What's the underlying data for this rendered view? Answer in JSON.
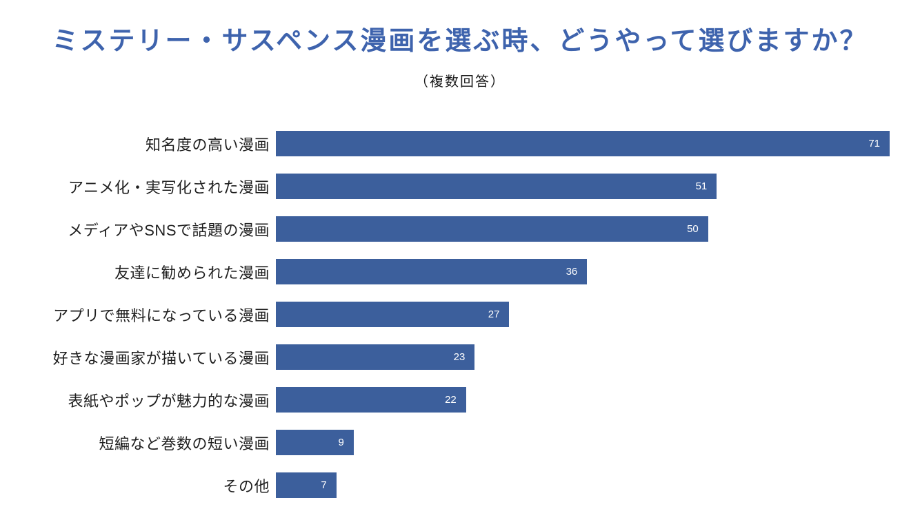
{
  "page": {
    "background": "#ffffff"
  },
  "chart_data": {
    "type": "bar",
    "orientation": "horizontal",
    "title": "ミステリー・サスペンス漫画を選ぶ時、どうやって選びますか？",
    "subtitle": "（複数回答）",
    "categories": [
      "知名度の高い漫画",
      "アニメ化・実写化された漫画",
      "メディアやSNSで話題の漫画",
      "友達に勧められた漫画",
      "アプリで無料になっている漫画",
      "好きな漫画家が描いている漫画",
      "表紙やポップが魅力的な漫画",
      "短編など巻数の短い漫画",
      "その他"
    ],
    "values": [
      71,
      51,
      50,
      36,
      27,
      23,
      22,
      9,
      7
    ],
    "xlim": [
      0,
      71
    ],
    "grid": "off",
    "legend": "none",
    "bar_color": "#3C5F9C",
    "value_label_color": "#ffffff",
    "title_color": "#3E63AD",
    "label_color": "#1f1f1f"
  }
}
